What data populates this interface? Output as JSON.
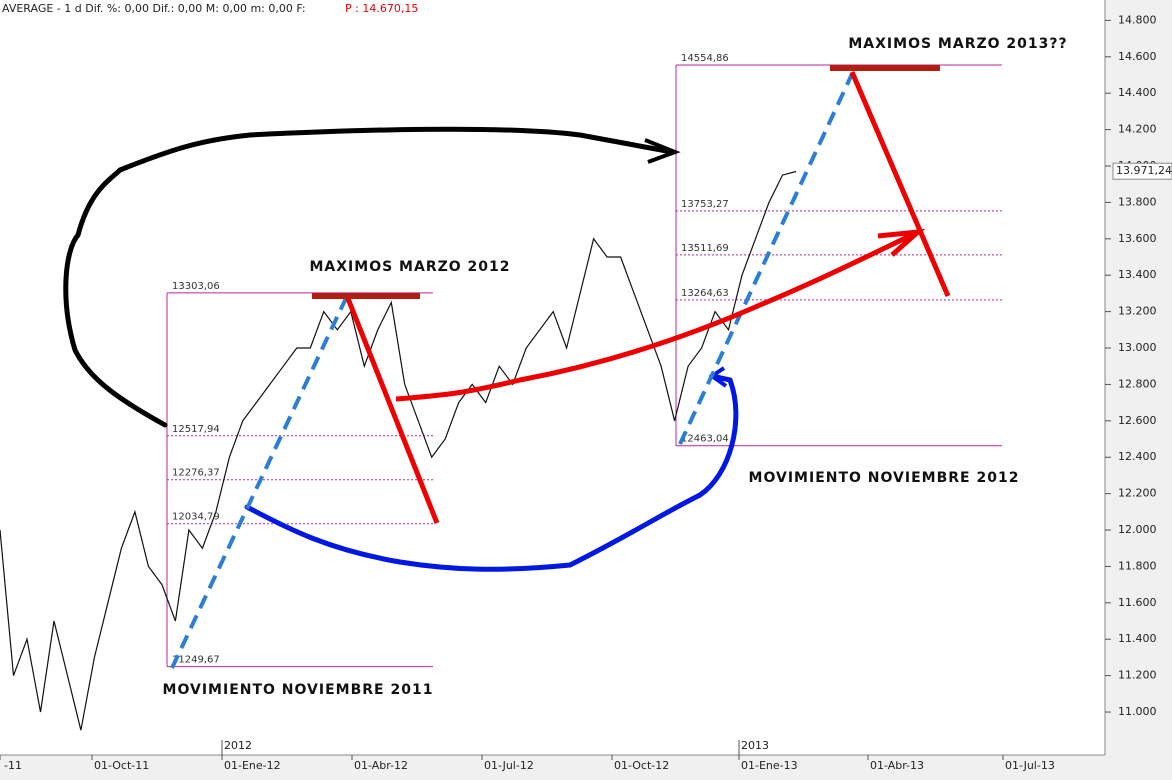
{
  "header": {
    "text": "AVERAGE -  1 d Dif.  %: 0,00 Dif.: 0,00 M: 0,00 m: 0,00 F:",
    "price": "P : 14.670,15"
  },
  "chart_data": {
    "type": "line",
    "series": [
      {
        "name": "AVERAGE",
        "color": "#111111",
        "values": [
          12000,
          11200,
          11400,
          11000,
          11500,
          11200,
          10900,
          11300,
          11600,
          11900,
          12100,
          11800,
          11700,
          11500,
          12000,
          11900,
          12100,
          12400,
          12600,
          12700,
          12800,
          12900,
          13000,
          13000,
          13200,
          13100,
          13200,
          12900,
          13100,
          13250,
          12800,
          12600,
          12400,
          12500,
          12700,
          12800,
          12700,
          12900,
          12800,
          13000,
          13100,
          13200,
          13000,
          13300,
          13600,
          13500,
          13500,
          13300,
          13100,
          12900,
          12600,
          12900,
          13000,
          13200,
          13100,
          13400,
          13600,
          13800,
          13950,
          13970
        ]
      }
    ],
    "ylim": [
      10764,
      14912
    ],
    "yticks": [
      {
        "value": 11000,
        "label": "11.000"
      },
      {
        "value": 11200,
        "label": "11.200"
      },
      {
        "value": 11400,
        "label": "11.400"
      },
      {
        "value": 11600,
        "label": "11.600"
      },
      {
        "value": 11800,
        "label": "11.800"
      },
      {
        "value": 12000,
        "label": "12.000"
      },
      {
        "value": 12200,
        "label": "12.200"
      },
      {
        "value": 12400,
        "label": "12.400"
      },
      {
        "value": 12600,
        "label": "12.600"
      },
      {
        "value": 12800,
        "label": "12.800"
      },
      {
        "value": 13000,
        "label": "13.000"
      },
      {
        "value": 13200,
        "label": "13.200"
      },
      {
        "value": 13400,
        "label": "13.400"
      },
      {
        "value": 13600,
        "label": "13.600"
      },
      {
        "value": 13800,
        "label": "13.800"
      },
      {
        "value": 14000,
        "label": "14.000"
      },
      {
        "value": 14200,
        "label": "14.200"
      },
      {
        "value": 14400,
        "label": "14.400"
      },
      {
        "value": 14600,
        "label": "14.600"
      },
      {
        "value": 14800,
        "label": "14.800"
      }
    ],
    "xlabels": [
      "-11",
      "01-Oct-11",
      "2012",
      "01-Ene-12",
      "01-Abr-12",
      "01-Jul-12",
      "01-Oct-12",
      "2013",
      "01-Ene-13",
      "01-Abr-13",
      "01-Jul-13"
    ],
    "last": {
      "value": 13971.24,
      "label": "13.971,24"
    },
    "fibs": [
      {
        "levels": [
          {
            "value": 13303.06,
            "label": "13303,06"
          },
          {
            "value": 12517.94,
            "label": "12517,94"
          },
          {
            "value": 12276.37,
            "label": "12276,37"
          },
          {
            "value": 12034.79,
            "label": "12034,79"
          },
          {
            "value": 11249.67,
            "label": "11249,67"
          }
        ]
      },
      {
        "levels": [
          {
            "value": 14554.86,
            "label": "14554,86"
          },
          {
            "value": 13753.27,
            "label": "13753,27"
          },
          {
            "value": 13511.69,
            "label": "13511,69"
          },
          {
            "value": 13264.63,
            "label": "13264,63"
          },
          {
            "value": 12463.04,
            "label": "12463,04"
          }
        ]
      }
    ],
    "annotations": [
      "MAXIMOS MARZO 2012",
      "MAXIMOS MARZO 2013??",
      "MOVIMIENTO NOVIEMBRE 2011",
      "MOVIMIENTO NOVIEMBRE 2012"
    ]
  }
}
